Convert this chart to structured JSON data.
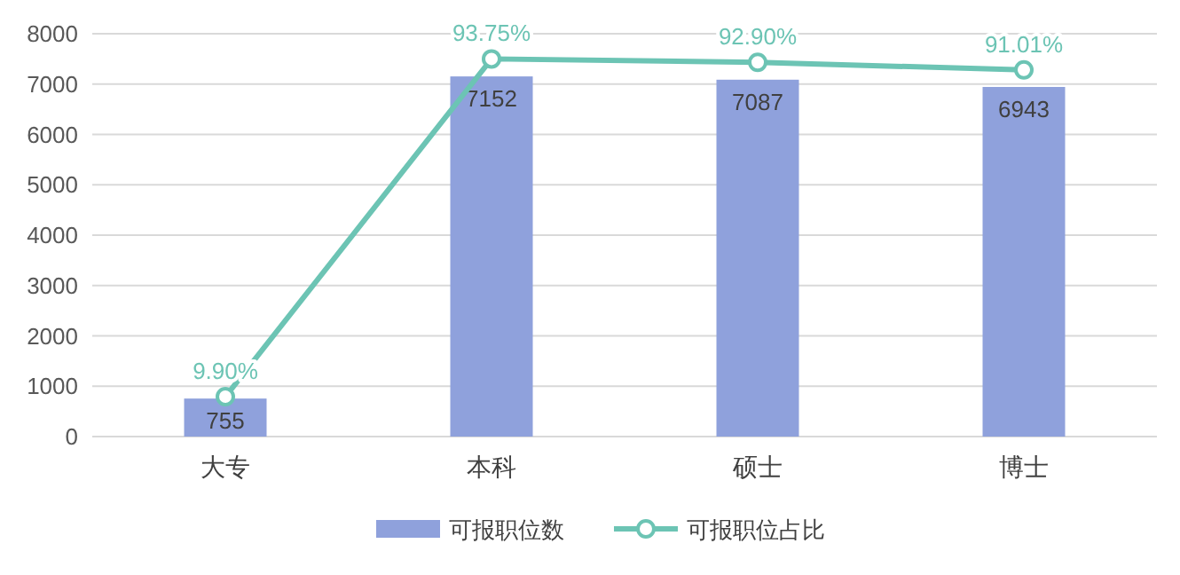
{
  "chart_data": {
    "type": "bar",
    "categories": [
      "大专",
      "本科",
      "硕士",
      "博士"
    ],
    "series": [
      {
        "name": "可报职位数",
        "color": "#8FA1DC",
        "values": [
          755,
          7152,
          7087,
          6943
        ],
        "value_labels": [
          "755",
          "7152",
          "7087",
          "6943"
        ]
      },
      {
        "name": "可报职位占比",
        "type": "line",
        "axis": "y2",
        "color": "#6CC4B4",
        "marker": "circle",
        "values": [
          9.9,
          93.75,
          92.9,
          91.01
        ],
        "value_labels": [
          "9.90%",
          "93.75%",
          "92.90%",
          "91.01%"
        ]
      }
    ],
    "ylim": [
      0,
      8000
    ],
    "yticks": [
      0,
      1000,
      2000,
      3000,
      4000,
      5000,
      6000,
      7000,
      8000
    ],
    "y2lim": [
      0,
      100
    ],
    "grid": "y",
    "legend": "bottom"
  }
}
